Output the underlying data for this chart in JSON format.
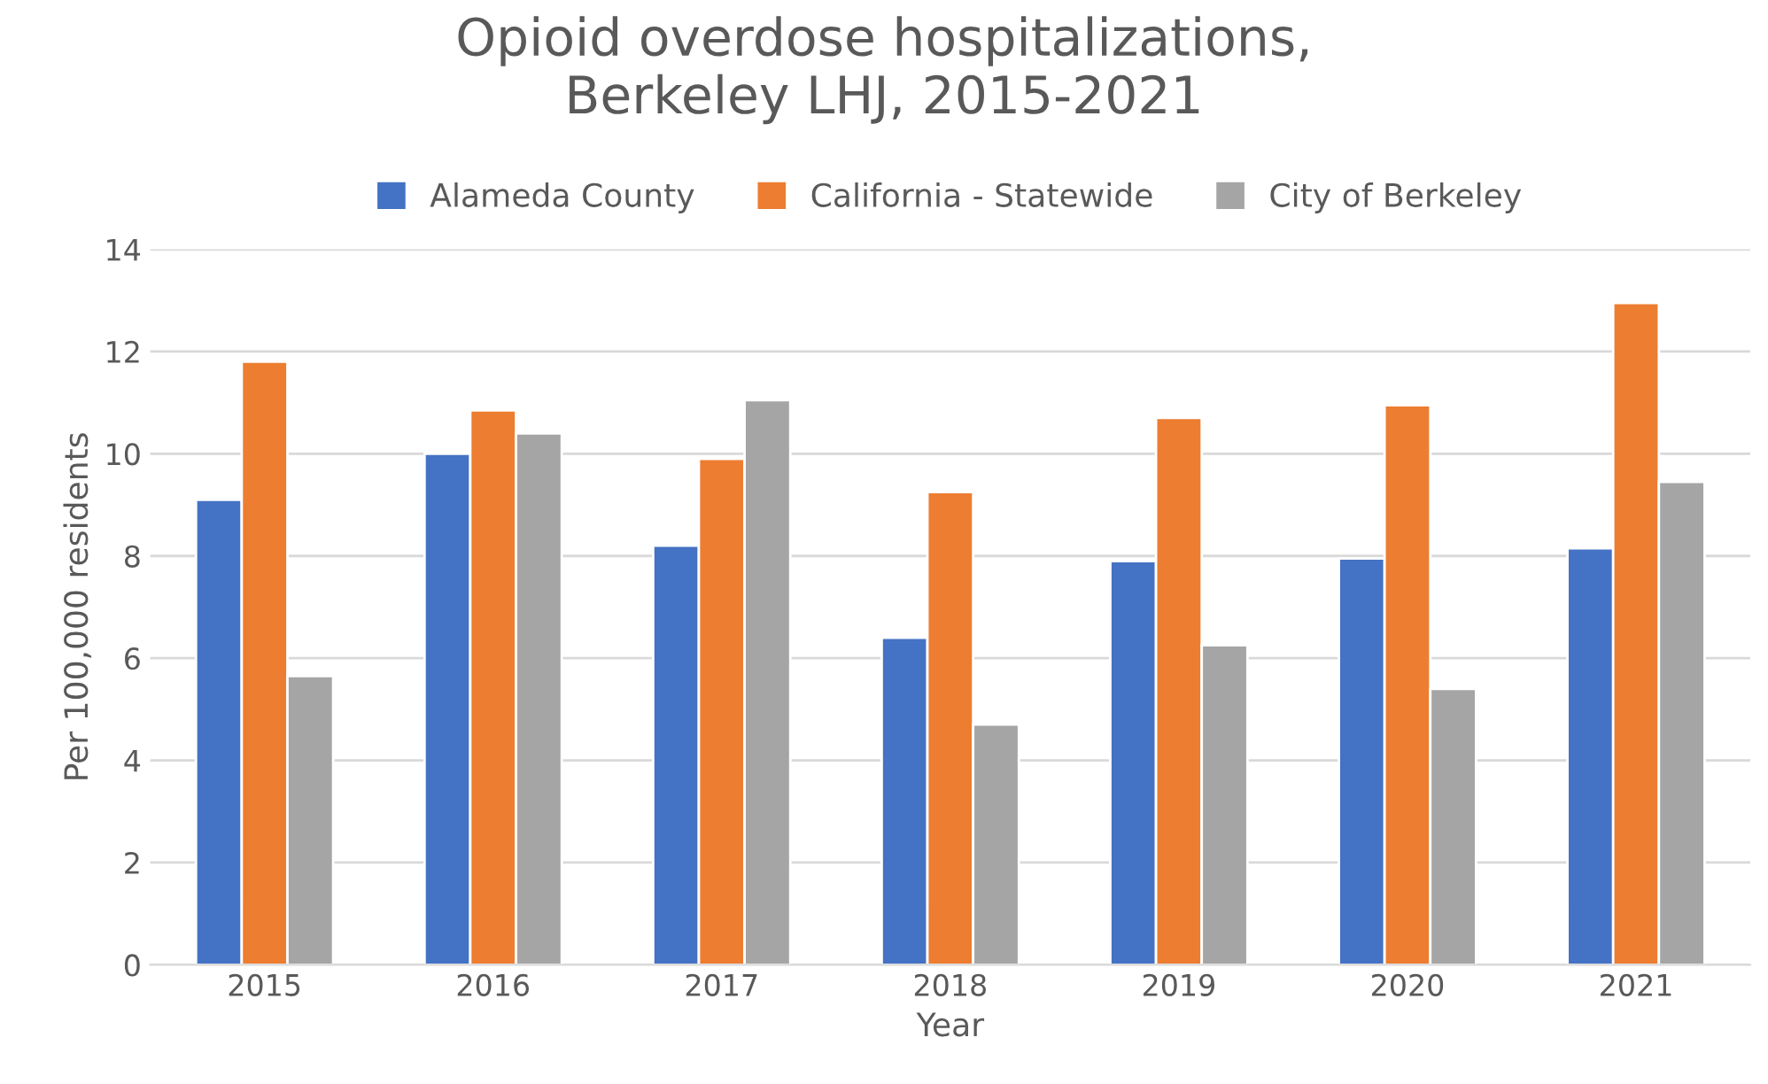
{
  "chart_data": {
    "type": "bar",
    "title": "Opioid overdose hospitalizations,\nBerkeley LHJ, 2015-2021",
    "xlabel": "Year",
    "ylabel": "Per 100,000 residents",
    "categories": [
      "2015",
      "2016",
      "2017",
      "2018",
      "2019",
      "2020",
      "2021"
    ],
    "series": [
      {
        "name": "Alameda County",
        "color": "#4472c4",
        "values": [
          9.1,
          10.0,
          8.2,
          6.4,
          7.9,
          7.95,
          8.15
        ]
      },
      {
        "name": "California - Statewide",
        "color": "#ed7d31",
        "values": [
          11.8,
          10.85,
          9.9,
          9.25,
          10.7,
          10.95,
          12.95
        ]
      },
      {
        "name": "City of Berkeley",
        "color": "#a5a5a5",
        "values": [
          5.65,
          10.4,
          11.05,
          4.7,
          6.25,
          5.4,
          9.45
        ]
      }
    ],
    "ylim": [
      0,
      14
    ],
    "yticks": [
      0,
      2,
      4,
      6,
      8,
      10,
      12,
      14
    ],
    "grid": "y",
    "legend": "top"
  }
}
